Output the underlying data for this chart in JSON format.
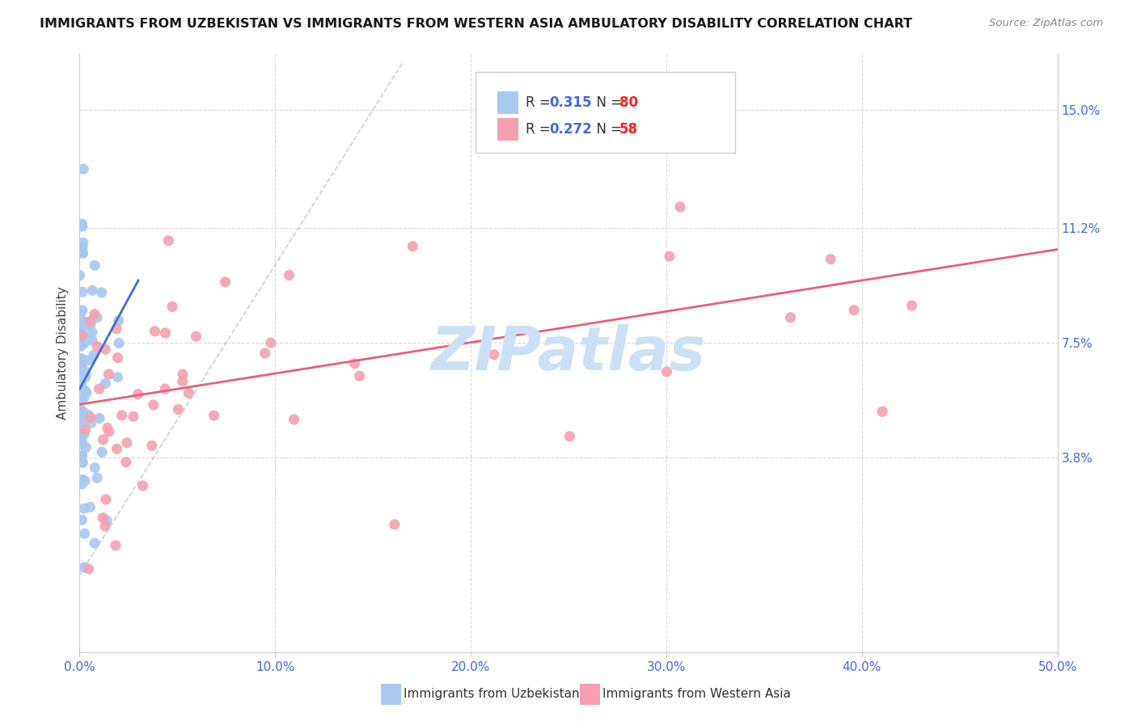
{
  "title": "IMMIGRANTS FROM UZBEKISTAN VS IMMIGRANTS FROM WESTERN ASIA AMBULATORY DISABILITY CORRELATION CHART",
  "source": "Source: ZipAtlas.com",
  "ylabel": "Ambulatory Disability",
  "yticks": [
    "15.0%",
    "11.2%",
    "7.5%",
    "3.8%"
  ],
  "ytick_vals": [
    0.15,
    0.112,
    0.075,
    0.038
  ],
  "xmin": 0.0,
  "xmax": 0.5,
  "ymin": -0.025,
  "ymax": 0.168,
  "R_uzbekistan": 0.315,
  "N_uzbekistan": 80,
  "R_western_asia": 0.272,
  "N_western_asia": 58,
  "color_uzbekistan": "#a8c8f0",
  "color_western_asia": "#f5a0b0",
  "color_uzbekistan_line": "#4169e1",
  "color_western_asia_line": "#e8607a",
  "color_diagonal": "#b0b0b0",
  "background_color": "#ffffff",
  "watermark_text": "ZIPatlas",
  "watermark_color": "#cce0f5",
  "legend_color_R": "#4169e1",
  "legend_color_N": "#ff2020",
  "xtick_color": "#4169e1",
  "ytick_color": "#4169e1",
  "legend_label_uzb": "Immigrants from Uzbekistan",
  "legend_label_was": "Immigrants from Western Asia"
}
